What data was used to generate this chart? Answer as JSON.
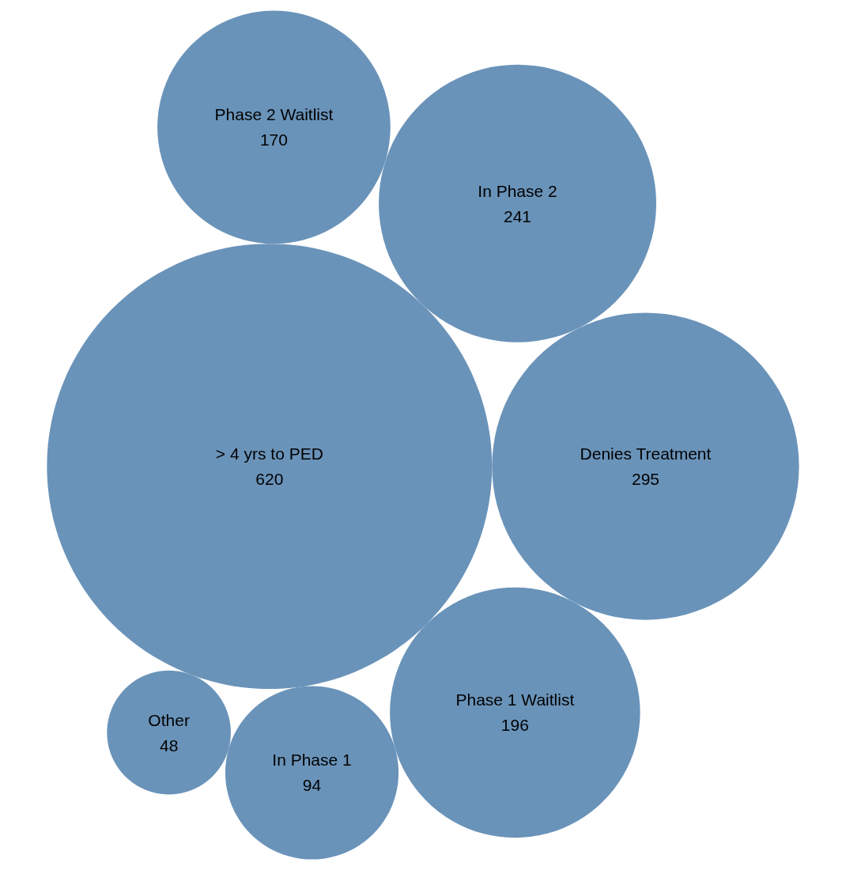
{
  "chart_data": {
    "type": "other",
    "categories": [
      "> 4 yrs to PED",
      "Denies Treatment",
      "In Phase 2",
      "Phase 1 Waitlist",
      "Phase 2 Waitlist",
      "In Phase 1",
      "Other"
    ],
    "values": [
      620,
      295,
      241,
      196,
      170,
      94,
      48
    ],
    "color": "#6a93b9",
    "data_labels": true
  }
}
